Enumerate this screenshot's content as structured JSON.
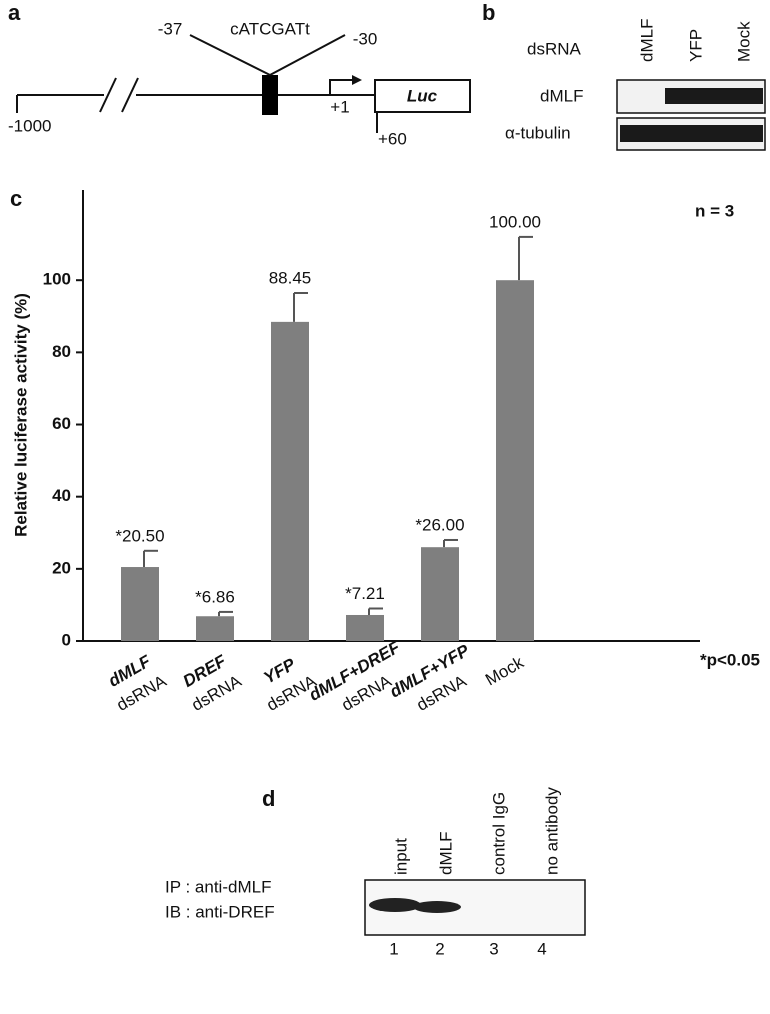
{
  "panel_a": {
    "letter": "a",
    "left_site": "-37",
    "motif": "cATCGATt",
    "right_site": "-30",
    "tss": "+1",
    "reporter": "Luc",
    "start": "-1000",
    "end": "+60"
  },
  "panel_b": {
    "letter": "b",
    "header": "dsRNA",
    "lanes": [
      "dMLF",
      "YFP",
      "Mock"
    ],
    "rows": [
      "dMLF",
      "α-tubulin"
    ]
  },
  "chart_data": {
    "type": "bar",
    "letter": "c",
    "y_label": "Relative luciferase activity (%)",
    "categories": [
      [
        "dMLF",
        "dsRNA"
      ],
      [
        "DREF",
        "dsRNA"
      ],
      [
        "YFP",
        "dsRNA"
      ],
      [
        "dMLF+DREF",
        "dsRNA"
      ],
      [
        "dMLF+YFP",
        "dsRNA"
      ],
      [
        "Mock"
      ]
    ],
    "values": [
      20.5,
      6.86,
      88.45,
      7.21,
      26.0,
      100.0
    ],
    "value_labels": [
      "*20.50",
      "*6.86",
      "88.45",
      "*7.21",
      "*26.00",
      "100.00"
    ],
    "errors": [
      4.5,
      1.2,
      8,
      1.8,
      2,
      12
    ],
    "color": "#7f7f7f",
    "ylim": [
      0,
      125
    ],
    "yticks": [
      0,
      20,
      40,
      60,
      80,
      100
    ],
    "annotations": [
      "n = 3",
      "*p<0.05"
    ]
  },
  "panel_d": {
    "letter": "d",
    "lanes": [
      "input",
      "dMLF",
      "control IgG",
      "no antibody"
    ],
    "ip": "IP : anti-dMLF",
    "ib": "IB : anti-DREF",
    "lane_numbers": [
      "1",
      "2",
      "3",
      "4"
    ]
  }
}
